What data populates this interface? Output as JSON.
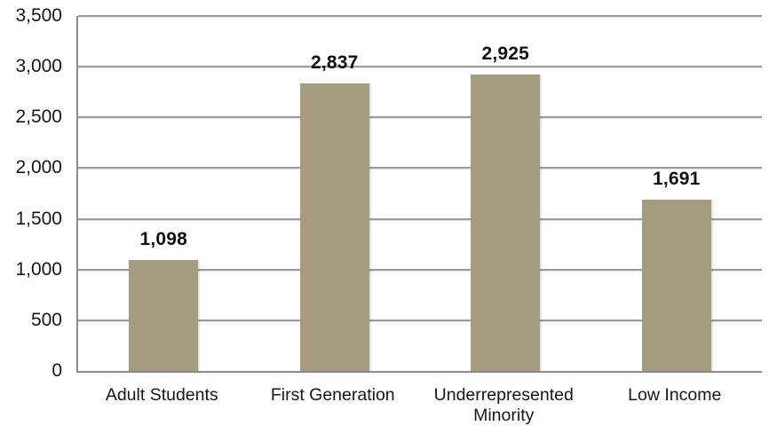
{
  "chart_data": {
    "type": "bar",
    "title": "",
    "xlabel": "",
    "ylabel": "",
    "categories": [
      "Adult Students",
      "First Generation",
      "Underrepresented Minority",
      "Low Income"
    ],
    "values": [
      1098,
      2837,
      2925,
      1691
    ],
    "value_labels": [
      "1,098",
      "2,837",
      "2,925",
      "1,691"
    ],
    "ylim": [
      0,
      3500
    ],
    "y_ticks": [
      0,
      500,
      1000,
      1500,
      2000,
      2500,
      3000,
      3500
    ],
    "y_tick_labels": [
      "0",
      "500",
      "1,000",
      "1,500",
      "2,000",
      "2,500",
      "3,000",
      "3,500"
    ],
    "grid": "horizontal gridlines on, at every 500",
    "legend": "none",
    "bar_color": "#A59B80",
    "grid_color": "#9B9B9B",
    "axis_color": "#8C8C8C",
    "text_color": "#161616"
  }
}
